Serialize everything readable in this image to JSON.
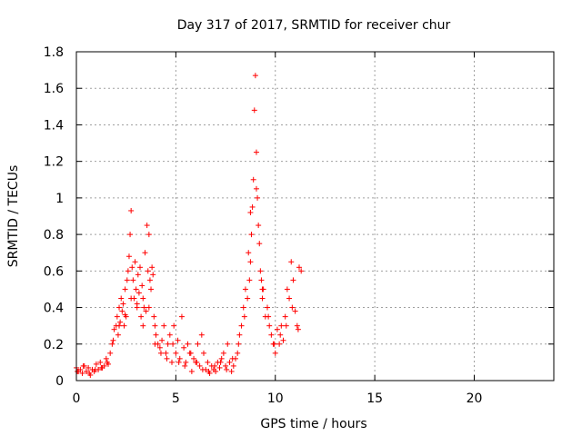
{
  "chart_data": {
    "type": "scatter",
    "title": "Day 317 of 2017, SRMTID for receiver chur",
    "xlabel": "GPS time / hours",
    "ylabel": "SRMTID / TECUs",
    "xlim": [
      0,
      24
    ],
    "ylim": [
      0,
      1.8
    ],
    "x_ticks": [
      0,
      5,
      10,
      15,
      20
    ],
    "x_tick_labels": [
      "0",
      "5",
      "10",
      "15",
      "20"
    ],
    "y_ticks": [
      0,
      0.2,
      0.4,
      0.6,
      0.8,
      1,
      1.2,
      1.4,
      1.6,
      1.8
    ],
    "y_tick_labels": [
      "0",
      "0.2",
      "0.4",
      "0.6",
      "0.8",
      "1",
      "1.2",
      "1.4",
      "1.6",
      "1.8"
    ],
    "grid": true,
    "marker": "+",
    "colors": {
      "series": "#ff0000",
      "grid": "#a0a0a0",
      "axis": "#000000"
    },
    "series": [
      {
        "x": [
          0.0,
          0.1,
          0.2,
          0.3,
          0.4,
          0.5,
          0.6,
          0.7,
          0.8,
          0.9,
          1.0,
          1.1,
          1.2,
          1.3,
          1.4,
          1.5,
          1.6,
          1.7,
          1.8,
          1.9,
          2.0,
          2.05,
          2.1,
          2.15,
          2.2,
          2.25,
          2.3,
          2.35,
          2.4,
          2.45,
          2.5,
          2.55,
          2.6,
          2.65,
          2.7,
          2.75,
          2.8,
          2.85,
          2.9,
          2.95,
          3.0,
          3.05,
          3.1,
          3.15,
          3.2,
          3.25,
          3.3,
          3.35,
          3.4,
          3.45,
          3.5,
          3.55,
          3.6,
          3.65,
          3.7,
          3.75,
          3.8,
          3.85,
          3.9,
          3.95,
          4.0,
          4.1,
          4.2,
          4.3,
          4.4,
          4.5,
          4.6,
          4.7,
          4.8,
          4.9,
          5.0,
          5.1,
          5.2,
          5.3,
          5.4,
          5.5,
          5.6,
          5.7,
          5.8,
          5.9,
          6.0,
          6.1,
          6.2,
          6.3,
          6.4,
          6.5,
          6.6,
          6.7,
          6.8,
          6.9,
          7.0,
          7.1,
          7.2,
          7.3,
          7.4,
          7.5,
          7.6,
          7.7,
          7.8,
          7.9,
          8.0,
          8.1,
          8.2,
          8.3,
          8.4,
          8.5,
          8.6,
          8.65,
          8.7,
          8.75,
          8.8,
          8.85,
          8.9,
          8.95,
          9.0,
          9.05,
          9.1,
          9.15,
          9.2,
          9.25,
          9.3,
          9.35,
          9.4,
          9.5,
          9.6,
          9.7,
          9.8,
          9.9,
          10.0,
          10.1,
          10.2,
          10.3,
          10.4,
          10.5,
          10.6,
          10.7,
          10.8,
          10.9,
          11.0,
          11.1,
          11.2,
          11.3,
          0.05,
          0.35,
          0.65,
          0.95,
          1.25,
          1.55,
          1.85,
          2.15,
          2.45,
          2.75,
          3.05,
          3.35,
          3.65,
          3.95,
          4.25,
          4.55,
          4.85,
          5.15,
          5.45,
          5.75,
          6.05,
          6.35,
          6.65,
          6.95,
          7.25,
          7.55,
          7.85,
          8.15,
          8.45,
          8.75,
          9.05,
          9.35,
          9.65,
          9.95,
          10.25,
          10.55,
          10.85,
          11.15
        ],
        "y": [
          0.07,
          0.05,
          0.06,
          0.04,
          0.08,
          0.05,
          0.07,
          0.03,
          0.06,
          0.05,
          0.09,
          0.06,
          0.1,
          0.07,
          0.08,
          0.12,
          0.09,
          0.15,
          0.2,
          0.28,
          0.3,
          0.35,
          0.25,
          0.4,
          0.32,
          0.45,
          0.38,
          0.42,
          0.3,
          0.5,
          0.35,
          0.55,
          0.6,
          0.68,
          0.8,
          0.93,
          0.62,
          0.55,
          0.45,
          0.65,
          0.5,
          0.4,
          0.58,
          0.48,
          0.62,
          0.35,
          0.52,
          0.45,
          0.4,
          0.7,
          0.38,
          0.85,
          0.6,
          0.8,
          0.55,
          0.5,
          0.62,
          0.58,
          0.35,
          0.3,
          0.25,
          0.2,
          0.18,
          0.22,
          0.3,
          0.15,
          0.2,
          0.25,
          0.1,
          0.3,
          0.15,
          0.22,
          0.12,
          0.35,
          0.18,
          0.1,
          0.2,
          0.15,
          0.05,
          0.12,
          0.1,
          0.2,
          0.08,
          0.25,
          0.15,
          0.06,
          0.1,
          0.04,
          0.08,
          0.06,
          0.05,
          0.1,
          0.07,
          0.12,
          0.15,
          0.08,
          0.2,
          0.1,
          0.05,
          0.08,
          0.12,
          0.15,
          0.25,
          0.3,
          0.4,
          0.5,
          0.45,
          0.7,
          0.55,
          0.65,
          0.8,
          0.95,
          1.1,
          1.48,
          1.67,
          1.25,
          1.0,
          0.85,
          0.75,
          0.6,
          0.55,
          0.45,
          0.5,
          0.35,
          0.4,
          0.3,
          0.25,
          0.2,
          0.15,
          0.28,
          0.2,
          0.3,
          0.22,
          0.35,
          0.5,
          0.45,
          0.65,
          0.55,
          0.38,
          0.3,
          0.62,
          0.6,
          0.05,
          0.08,
          0.04,
          0.06,
          0.07,
          0.1,
          0.22,
          0.3,
          0.36,
          0.45,
          0.42,
          0.3,
          0.4,
          0.2,
          0.15,
          0.12,
          0.2,
          0.1,
          0.08,
          0.15,
          0.1,
          0.06,
          0.05,
          0.08,
          0.1,
          0.06,
          0.12,
          0.2,
          0.35,
          0.92,
          1.05,
          0.5,
          0.35,
          0.2,
          0.25,
          0.3,
          0.4,
          0.28
        ]
      }
    ]
  }
}
